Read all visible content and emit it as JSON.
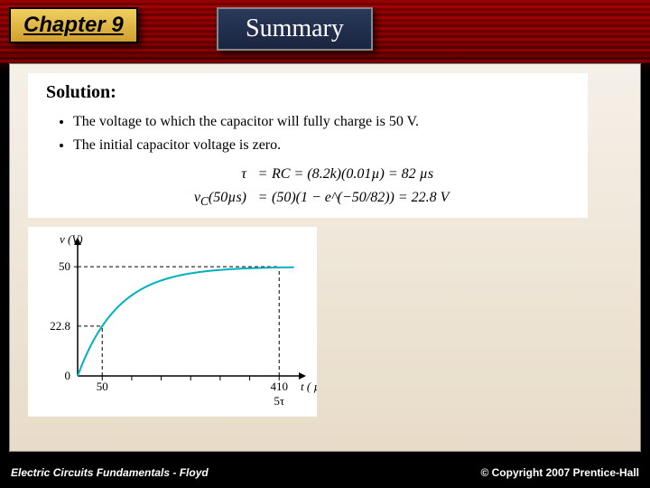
{
  "chapter": {
    "label": "Chapter 9"
  },
  "summary": {
    "label": "Summary"
  },
  "solution": {
    "title": "Solution:",
    "bullets": [
      "The voltage to which the capacitor will fully charge is 50 V.",
      "The initial capacitor voltage is zero."
    ],
    "eq1": {
      "lhs": "τ",
      "rhs": "RC = (8.2k)(0.01µ) = 82 µs"
    },
    "eq2": {
      "lhs": "v_C(50µs)",
      "rhs": "(50)(1 − e^(−50/82)) = 22.8 V"
    }
  },
  "chart": {
    "type": "line",
    "ylabel": "v (V)",
    "xlabel": "t ( µs)",
    "sublabel": "5τ",
    "xlim": [
      0,
      450
    ],
    "ylim": [
      0,
      60
    ],
    "yticks": [
      0,
      22.8,
      50
    ],
    "xticks_major": [
      0,
      50,
      410
    ],
    "xticks_minor_count": 6,
    "curve_color": "#00b0c0",
    "axis_color": "#000000",
    "dash_color": "#000000",
    "background_color": "#ffffff",
    "asymptote_y": 50,
    "tau_us": 82,
    "mark_x": 50,
    "mark_y": 22.8,
    "end_x": 410,
    "line_width": 2,
    "font_size": 13
  },
  "footer": {
    "left": "Electric Circuits Fundamentals - Floyd",
    "right": "© Copyright 2007 Prentice-Hall"
  }
}
